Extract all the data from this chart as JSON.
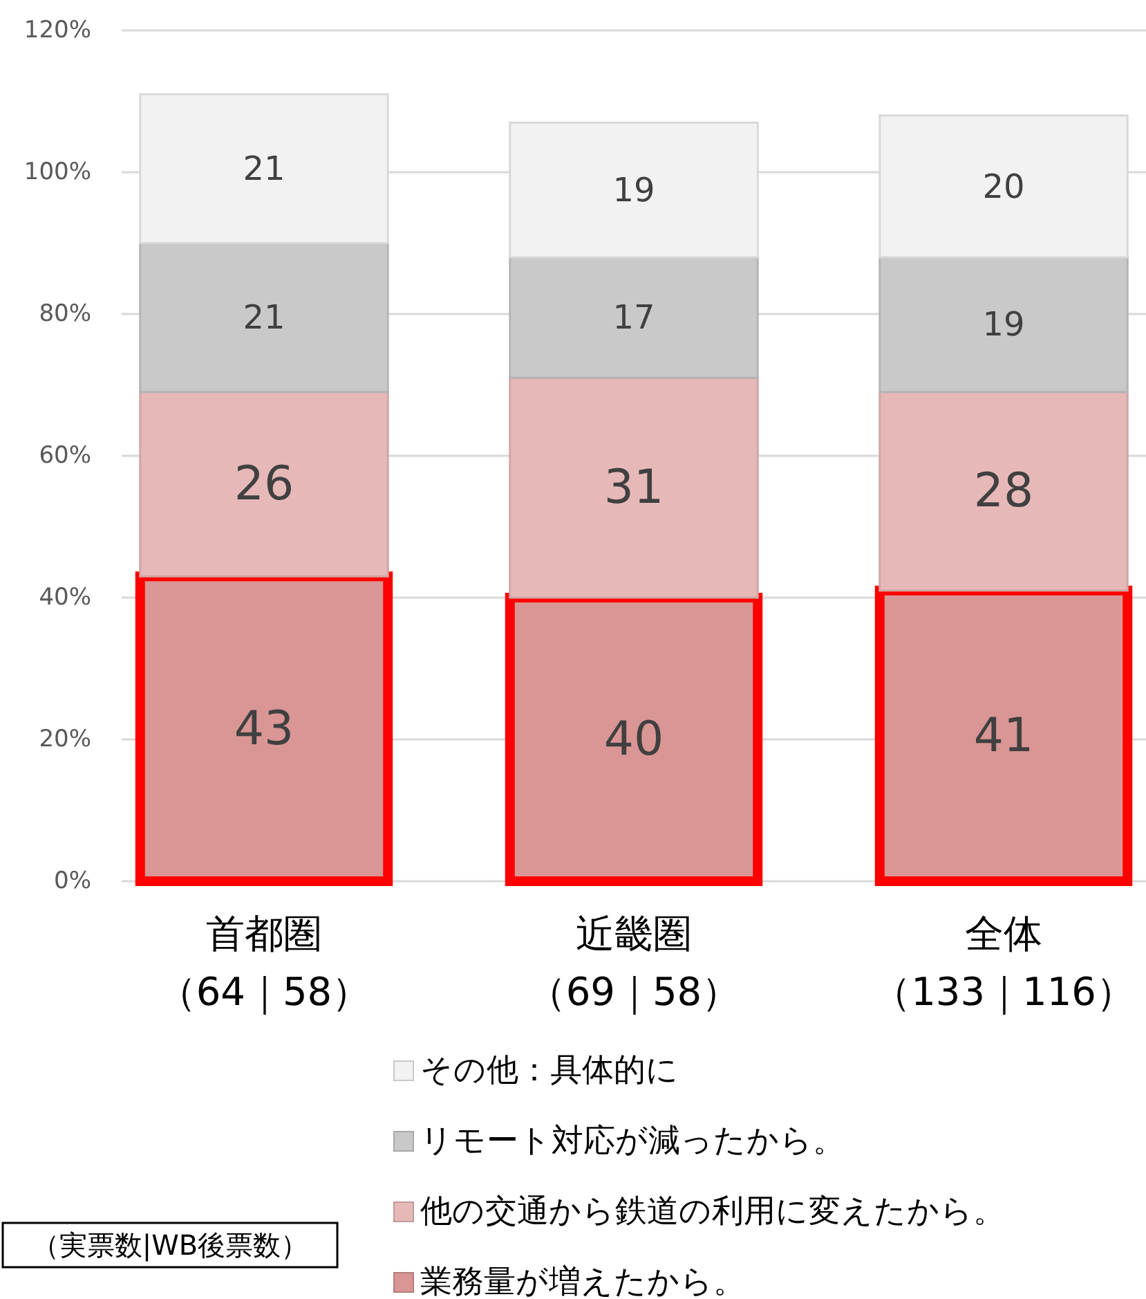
{
  "chart_data": {
    "type": "bar",
    "stacked": true,
    "data_labels": true,
    "grid": "y",
    "legend": "bottom",
    "categories": [
      "首都圏（64｜58）",
      "近畿圏（69｜58）",
      "全体（133｜116）"
    ],
    "series": [
      {
        "name": "業務量が増えたから。",
        "color": "#d99694",
        "values": [
          43,
          40,
          41
        ]
      },
      {
        "name": "他の交通から鉄道の利用に変えたから。",
        "color": "#e6b9b8",
        "values": [
          26,
          31,
          28
        ]
      },
      {
        "name": "リモート対応が減ったから。",
        "color": "#c9c9c9",
        "values": [
          21,
          17,
          19
        ]
      },
      {
        "name": "その他：具体的に",
        "color": "#f2f2f2",
        "values": [
          21,
          19,
          20
        ]
      }
    ],
    "ylim": [
      0,
      120
    ],
    "yticks": [
      {
        "value": 0,
        "label": "0%"
      },
      {
        "value": 20,
        "label": "20%"
      },
      {
        "value": 40,
        "label": "40%"
      },
      {
        "value": 60,
        "label": "60%"
      },
      {
        "value": 80,
        "label": "80%"
      },
      {
        "value": 100,
        "label": "100%"
      },
      {
        "value": 120,
        "label": "120%"
      }
    ],
    "annotations": [
      "（実票数|WB後票数）"
    ]
  }
}
